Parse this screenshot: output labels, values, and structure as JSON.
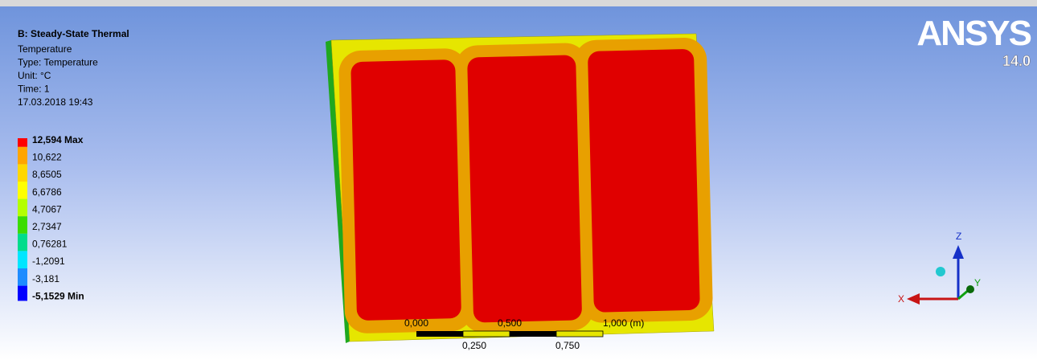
{
  "header": {
    "title": "B: Steady-State Thermal",
    "lines": [
      "Temperature",
      "Type: Temperature",
      "Unit: °C",
      "Time: 1",
      "17.03.2018 19:43"
    ]
  },
  "legend": {
    "labels": [
      "12,594 Max",
      "10,622",
      "8,6505",
      "6,6786",
      "4,7067",
      "2,7347",
      "0,76281",
      "-1,2091",
      "-3,181",
      "-5,1529 Min"
    ],
    "bands": [
      "#ff0000",
      "#ffa500",
      "#ffd700",
      "#ffff00",
      "#b4ff00",
      "#3cdc00",
      "#00dc8c",
      "#00e6ff",
      "#1e8cff",
      "#0000ff"
    ]
  },
  "logo": {
    "brand": "ANSYS",
    "version": "14.0"
  },
  "scale": {
    "top_labels": [
      "0,000",
      "0,500",
      "1,000 (m)"
    ],
    "bottom_labels": [
      "0,250",
      "0,750"
    ]
  },
  "triad": {
    "x": "X",
    "y": "Y",
    "z": "Z"
  }
}
